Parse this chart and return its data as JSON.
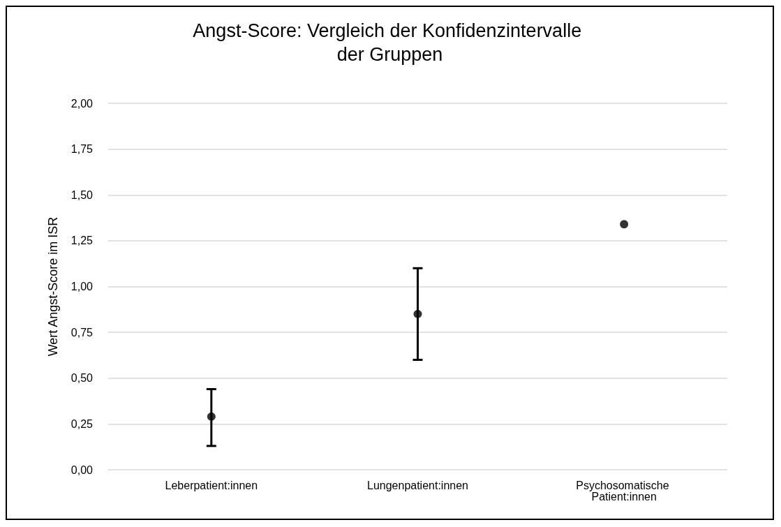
{
  "chart_data": {
    "type": "scatter",
    "title": "Angst-Score: Vergleich der Konfidenzintervalle der Gruppen",
    "ylabel": "Wert Angst-Score im ISR",
    "categories": [
      "Leberpatient:innen",
      "Lungenpatient:innen",
      "Psychosomatische Patient:innen"
    ],
    "values": [
      0.29,
      0.85,
      1.34
    ],
    "errors": [
      [
        0.13,
        0.44
      ],
      [
        0.6,
        1.1
      ],
      null
    ],
    "color": "#000000",
    "marker": "circle",
    "ylim": [
      0,
      2
    ],
    "yticks": [
      {
        "value": 0,
        "label": "0,00"
      },
      {
        "value": 0.25,
        "label": "0,25"
      },
      {
        "value": 0.5,
        "label": "0,50"
      },
      {
        "value": 0.75,
        "label": "0,75"
      },
      {
        "value": 1,
        "label": "1,00"
      },
      {
        "value": 1.25,
        "label": "1,25"
      },
      {
        "value": 1.5,
        "label": "1,50"
      },
      {
        "value": 1.75,
        "label": "1,75"
      },
      {
        "value": 2,
        "label": "2,00"
      }
    ],
    "grid": "y"
  }
}
